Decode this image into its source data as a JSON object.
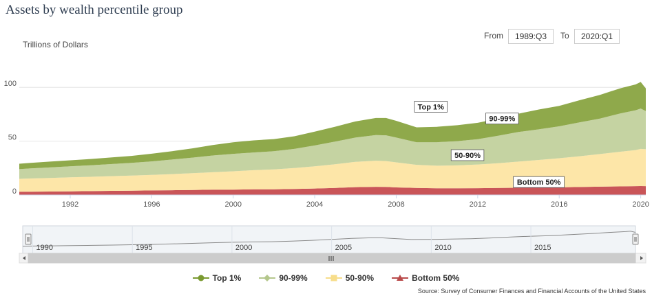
{
  "title": "Assets by wealth percentile group",
  "range": {
    "from_label": "From",
    "from_value": "1989:Q3",
    "to_label": "To",
    "to_value": "2020:Q1"
  },
  "source": "Source: Survey of Consumer Finances and Financial Accounts of the United States",
  "colors": {
    "top1": "#8fa94b",
    "p90_99": "#c5d3a2",
    "p50_90": "#fde6a8",
    "bottom50": "#c95558",
    "navigator_line": "#888888"
  },
  "legend": [
    {
      "label": "Top 1%",
      "color": "#7a9a30",
      "marker": "circle"
    },
    {
      "label": "90-99%",
      "color": "#b4c78c",
      "marker": "diamond"
    },
    {
      "label": "50-90%",
      "color": "#f7dd8a",
      "marker": "square"
    },
    {
      "label": "Bottom 50%",
      "color": "#b94a4a",
      "marker": "triangle"
    }
  ],
  "chart_data": {
    "type": "area",
    "stacked": true,
    "ylabel": "Trillions of Dollars",
    "xlim": [
      1989.5,
      2020.25
    ],
    "ylim": [
      0,
      125
    ],
    "yticks": [
      0,
      50,
      100
    ],
    "xticks": [
      1992,
      1996,
      2000,
      2004,
      2008,
      2012,
      2016,
      2020
    ],
    "grid": true,
    "x": [
      1989.5,
      1990,
      1991,
      1992,
      1993,
      1994,
      1995,
      1996,
      1997,
      1998,
      1999,
      2000,
      2001,
      2002,
      2003,
      2004,
      2005,
      2006,
      2007,
      2007.5,
      2008,
      2009,
      2010,
      2011,
      2012,
      2013,
      2014,
      2015,
      2016,
      2017,
      2018,
      2019,
      2019.75,
      2020,
      2020.25
    ],
    "series": [
      {
        "name": "Bottom 50%",
        "values": [
          3,
          3,
          3.2,
          3.4,
          3.6,
          3.8,
          4,
          4.2,
          4.4,
          4.6,
          4.9,
          5,
          5.2,
          5.3,
          5.6,
          6,
          6.6,
          7.3,
          7.6,
          7.5,
          7,
          6.5,
          6.2,
          6.2,
          6.3,
          6.5,
          6.7,
          6.9,
          7.1,
          7.4,
          7.7,
          8,
          8.2,
          8.3,
          8.2
        ]
      },
      {
        "name": "50-90%",
        "values": [
          12,
          12.3,
          12.6,
          13,
          13.3,
          13.7,
          14,
          14.5,
          15,
          15.6,
          16.2,
          17,
          17.8,
          18.4,
          19.4,
          20.6,
          22,
          23.5,
          24.2,
          24,
          23.3,
          21.5,
          21,
          21.3,
          22,
          23,
          24.3,
          25.6,
          27,
          28.6,
          30.3,
          32.2,
          33.5,
          34.5,
          34.3
        ]
      },
      {
        "name": "90-99%",
        "values": [
          9,
          9.3,
          9.8,
          10.2,
          10.7,
          11.2,
          11.8,
          12.5,
          13.5,
          14.5,
          15.6,
          16.2,
          16.5,
          16.9,
          17.8,
          19.4,
          21,
          22.5,
          23.8,
          23.9,
          23,
          21,
          21.8,
          22.5,
          23.5,
          25.5,
          27.5,
          28.5,
          29.7,
          31.5,
          33,
          35.5,
          37,
          37.5,
          35.5
        ]
      },
      {
        "name": "Top 1%",
        "values": [
          5,
          5.1,
          5.4,
          5.6,
          5.8,
          6.1,
          6.5,
          7.1,
          7.8,
          8.6,
          9.7,
          10.8,
          11.2,
          11.3,
          11.7,
          12.8,
          13.8,
          15,
          15.9,
          16.1,
          15.6,
          13.8,
          14.3,
          14.8,
          15.2,
          16,
          17,
          18.4,
          19,
          20.5,
          22,
          23.4,
          24,
          24.7,
          21
        ]
      }
    ],
    "annotations": [
      {
        "text": "Top 1%",
        "x": 2009.7,
        "y": 82
      },
      {
        "text": "90-99%",
        "x": 2013.2,
        "y": 71
      },
      {
        "text": "50-90%",
        "x": 2011.5,
        "y": 37
      },
      {
        "text": "Bottom 50%",
        "x": 2015,
        "y": 12
      }
    ],
    "navigator": {
      "xticks": [
        1990,
        1995,
        2000,
        2005,
        2010,
        2015
      ]
    }
  }
}
